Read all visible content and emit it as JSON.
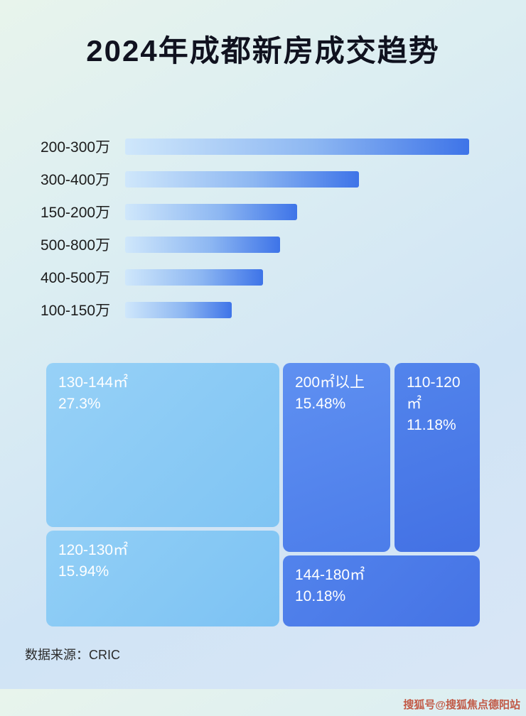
{
  "page": {
    "title": "2024年成都新房成交趋势",
    "source_label": "数据来源：CRIC",
    "watermark": "搜狐号@搜狐焦点德阳站"
  },
  "colors": {
    "bar_gradient_start": "#cfe7fb",
    "bar_gradient_end": "#3e74e8",
    "block_light_blue": "#8accf5",
    "block_medium_blue": "#5a8df0",
    "block_dark_blue": "#4b7ae7",
    "title_text": "#10121f",
    "watermark_text": "#bf4a35"
  },
  "chart_data": [
    {
      "type": "bar",
      "orientation": "horizontal",
      "title": "2024年成都新房成交趋势（总价段）",
      "categories": [
        "200-300万",
        "300-400万",
        "150-200万",
        "500-800万",
        "400-500万",
        "100-150万"
      ],
      "values": [
        100,
        68,
        50,
        45,
        40,
        31
      ],
      "value_unit": "relative bar length %, no numeric labels shown in image",
      "xlabel": "",
      "ylabel": "",
      "grid": false,
      "legend": false
    },
    {
      "type": "treemap",
      "title": "2024年成都新房成交趋势（面积段占比）",
      "items": [
        {
          "label": "130-144㎡",
          "value": 27.3,
          "value_label": "27.3%"
        },
        {
          "label": "200㎡以上",
          "value": 15.48,
          "value_label": "15.48%"
        },
        {
          "label": "110-120㎡",
          "value": 11.18,
          "value_label": "11.18%"
        },
        {
          "label": "120-130㎡",
          "value": 15.94,
          "value_label": "15.94%"
        },
        {
          "label": "144-180㎡",
          "value": 10.18,
          "value_label": "10.18%"
        }
      ]
    }
  ]
}
